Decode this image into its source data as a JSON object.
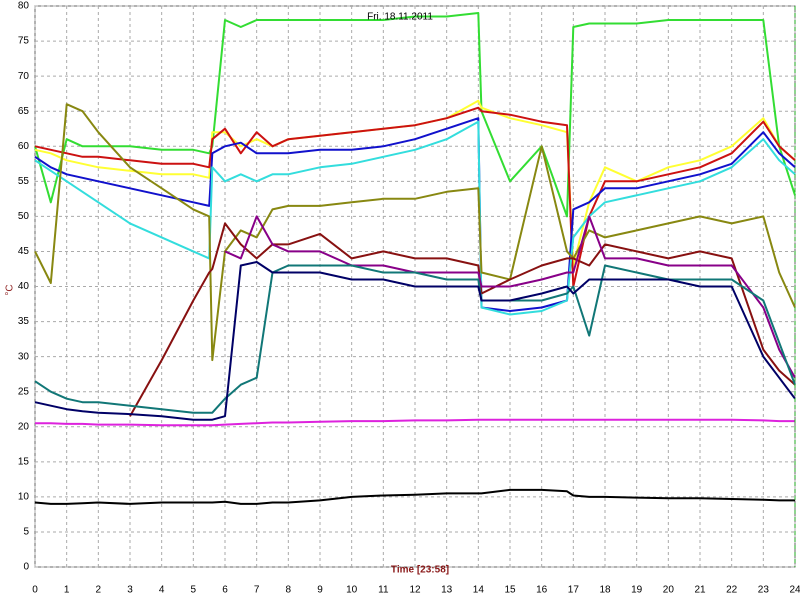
{
  "chart_data": {
    "type": "line",
    "title": "Fri. 18.11.2011",
    "xlabel": "Time [23:58]",
    "ylabel": "°C",
    "x": [
      0,
      0.5,
      1,
      1.5,
      2,
      3,
      4,
      5,
      5.5,
      5.6,
      6,
      6.5,
      7,
      7.5,
      8,
      9,
      10,
      11,
      12,
      13,
      14,
      14.1,
      15,
      16,
      16.8,
      17,
      17.5,
      18,
      19,
      20,
      21,
      22,
      23,
      23.5,
      24
    ],
    "xlim": [
      0,
      24
    ],
    "xticks": [
      0,
      1,
      2,
      3,
      4,
      5,
      6,
      7,
      8,
      9,
      10,
      11,
      12,
      13,
      14,
      15,
      16,
      17,
      18,
      19,
      20,
      21,
      22,
      23,
      24
    ],
    "ylim": [
      0,
      80
    ],
    "yticks": [
      0,
      5,
      10,
      15,
      20,
      25,
      30,
      35,
      40,
      45,
      50,
      55,
      60,
      65,
      70,
      75,
      80
    ],
    "grid": true,
    "series": [
      {
        "color": "#33dd33",
        "values": [
          60,
          52,
          61,
          60,
          60,
          60,
          59.5,
          59.5,
          59,
          60,
          78,
          77,
          78,
          78,
          78,
          78,
          78,
          78,
          78.5,
          78.5,
          79,
          65,
          55,
          60,
          50,
          77,
          77.5,
          77.5,
          77.5,
          78,
          78,
          78,
          78,
          60,
          53
        ]
      },
      {
        "color": "#ffff33",
        "values": [
          59.5,
          59,
          58,
          57.5,
          57,
          56.5,
          56,
          56,
          55.5,
          62,
          62,
          60,
          61,
          60,
          61,
          61.5,
          62,
          62.5,
          63,
          64,
          66.5,
          65.5,
          64,
          63,
          62,
          43,
          52,
          57,
          55,
          57,
          58,
          60,
          64,
          60,
          58
        ]
      },
      {
        "color": "#cc1111",
        "values": [
          60,
          59.5,
          59,
          58.5,
          58.5,
          58,
          57.5,
          57.5,
          57,
          61,
          62.5,
          59,
          62,
          60,
          61,
          61.5,
          62,
          62.5,
          63,
          64,
          65.5,
          65,
          64.5,
          63.5,
          63,
          40,
          50,
          55,
          55,
          56,
          57,
          59,
          63.5,
          60,
          58
        ]
      },
      {
        "color": "#1111cc",
        "values": [
          58.5,
          57,
          56,
          55.5,
          55,
          54,
          53,
          52,
          51.5,
          59,
          60,
          60.5,
          59,
          59,
          59,
          59.5,
          59.5,
          60,
          61,
          62.5,
          64,
          37,
          36.5,
          37,
          38,
          51,
          52,
          54,
          54,
          55,
          56,
          57.5,
          62,
          59,
          57
        ]
      },
      {
        "color": "#33dddd",
        "values": [
          58,
          56.5,
          55,
          53.5,
          52,
          49,
          47,
          45,
          44,
          57,
          55,
          56,
          55,
          56,
          56,
          57,
          57.5,
          58.5,
          59.5,
          61,
          63.5,
          37,
          36,
          36.5,
          38,
          47,
          50,
          52,
          53,
          54,
          55,
          57,
          61,
          58,
          56
        ]
      },
      {
        "color": "#888811",
        "values": [
          45,
          40.5,
          66,
          65,
          62,
          57,
          54,
          51,
          50,
          29.5,
          45,
          48,
          47,
          51,
          51.5,
          51.5,
          52,
          52.5,
          52.5,
          53.5,
          54,
          42,
          41,
          60,
          45,
          44,
          48,
          47,
          48,
          49,
          50,
          49,
          50,
          42,
          37
        ]
      },
      {
        "color": "#881111",
        "values": [
          null,
          null,
          null,
          null,
          null,
          21.5,
          29.5,
          38,
          42,
          42.5,
          49,
          46,
          44,
          46,
          46,
          47.5,
          44,
          45,
          44,
          44,
          43,
          39,
          41,
          43,
          44,
          44,
          43,
          46,
          45,
          44,
          45,
          44,
          31,
          28,
          26
        ]
      },
      {
        "color": "#880088",
        "values": [
          null,
          null,
          null,
          null,
          null,
          null,
          null,
          null,
          null,
          null,
          45,
          44,
          50,
          46,
          45,
          45,
          43,
          43,
          42,
          42,
          42,
          40,
          40,
          41,
          42,
          42,
          50,
          44,
          44,
          43,
          43,
          43,
          37,
          31,
          27
        ]
      },
      {
        "color": "#117777",
        "values": [
          26.5,
          25,
          24,
          23.5,
          23.5,
          23,
          22.5,
          22,
          22,
          22,
          24,
          26,
          27,
          42,
          43,
          43,
          43,
          42,
          42,
          41,
          41,
          38,
          38,
          38,
          39,
          40,
          33,
          43,
          42,
          41,
          41,
          41,
          38,
          32,
          26
        ]
      },
      {
        "color": "#000066",
        "values": [
          23.5,
          23,
          22.5,
          22.2,
          22,
          21.8,
          21.5,
          21,
          21,
          21,
          21.5,
          43,
          43.5,
          42,
          42,
          42,
          41,
          41,
          40,
          40,
          40,
          38,
          38,
          39,
          40,
          39,
          41,
          41,
          41,
          41,
          40,
          40,
          30,
          27,
          24
        ]
      },
      {
        "color": "#dd22dd",
        "values": [
          20.5,
          20.5,
          20.4,
          20.4,
          20.3,
          20.3,
          20.2,
          20.2,
          20.2,
          20.2,
          20.3,
          20.4,
          20.5,
          20.6,
          20.6,
          20.7,
          20.8,
          20.8,
          20.9,
          20.9,
          21,
          21,
          21,
          21,
          21,
          21,
          21,
          21,
          21,
          21,
          21,
          21,
          20.9,
          20.8,
          20.8
        ]
      },
      {
        "color": "#000000",
        "values": [
          9.2,
          9,
          9,
          9.1,
          9.2,
          9,
          9.2,
          9.2,
          9.2,
          9.2,
          9.3,
          9,
          9,
          9.2,
          9.2,
          9.5,
          10,
          10.2,
          10.3,
          10.5,
          10.5,
          10.5,
          11,
          11,
          10.8,
          10.2,
          10,
          10,
          9.9,
          9.8,
          9.8,
          9.7,
          9.6,
          9.5,
          9.5
        ]
      }
    ]
  }
}
